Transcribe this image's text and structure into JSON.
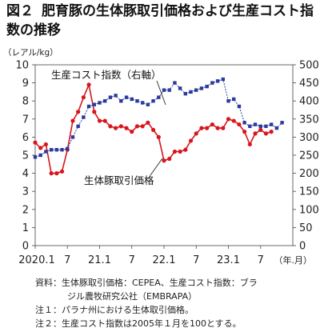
{
  "title": {
    "fig": "図２",
    "text": "肥育豚の生体豚取引価格および生産コスト指数の推移"
  },
  "chart_data": {
    "type": "line",
    "y_left_unit": "（レアル/kg）",
    "y_left_range": [
      0,
      10
    ],
    "y_left_ticks": [
      "0",
      "1",
      "2",
      "3",
      "4",
      "5",
      "6",
      "7",
      "8",
      "9",
      "10"
    ],
    "y_right_range": [
      0,
      500
    ],
    "y_right_ticks": [
      "0",
      "50",
      "100",
      "150",
      "200",
      "250",
      "300",
      "350",
      "400",
      "450",
      "500"
    ],
    "x_tick_labels": [
      "2020.1",
      "7",
      "21.1",
      "7",
      "22.1",
      "7",
      "23.1",
      "7"
    ],
    "x_unit": "（年.月）",
    "x_range": [
      "2020-01",
      "2024-01"
    ],
    "series": [
      {
        "name": "生体豚取引価格",
        "axis": "left",
        "color": "#d9141b",
        "marker": "circle",
        "points": [
          [
            "2020-01",
            5.7
          ],
          [
            "2020-02",
            5.4
          ],
          [
            "2020-03",
            5.6
          ],
          [
            "2020-04",
            4.0
          ],
          [
            "2020-05",
            4.0
          ],
          [
            "2020-06",
            4.1
          ],
          [
            "2020-07",
            5.3
          ],
          [
            "2020-08",
            6.9
          ],
          [
            "2020-09",
            7.4
          ],
          [
            "2020-10",
            8.2
          ],
          [
            "2020-11",
            8.9
          ],
          [
            "2020-12",
            7.4
          ],
          [
            "2021-01",
            6.9
          ],
          [
            "2021-02",
            6.9
          ],
          [
            "2021-03",
            6.6
          ],
          [
            "2021-04",
            6.5
          ],
          [
            "2021-05",
            6.6
          ],
          [
            "2021-06",
            6.5
          ],
          [
            "2021-07",
            6.3
          ],
          [
            "2021-08",
            6.6
          ],
          [
            "2021-09",
            6.6
          ],
          [
            "2021-10",
            6.8
          ],
          [
            "2021-11",
            6.4
          ],
          [
            "2021-12",
            6.0
          ],
          [
            "2022-01",
            4.7
          ],
          [
            "2022-02",
            4.8
          ],
          [
            "2022-03",
            5.2
          ],
          [
            "2022-04",
            5.2
          ],
          [
            "2022-05",
            5.3
          ],
          [
            "2022-06",
            5.8
          ],
          [
            "2022-07",
            6.2
          ],
          [
            "2022-08",
            6.5
          ],
          [
            "2022-09",
            6.5
          ],
          [
            "2022-10",
            6.7
          ],
          [
            "2022-11",
            6.5
          ],
          [
            "2022-12",
            6.5
          ],
          [
            "2023-01",
            7.0
          ],
          [
            "2023-02",
            6.9
          ],
          [
            "2023-03",
            6.7
          ],
          [
            "2023-04",
            6.3
          ],
          [
            "2023-05",
            5.6
          ],
          [
            "2023-06",
            6.2
          ],
          [
            "2023-07",
            6.4
          ],
          [
            "2023-08",
            6.2
          ],
          [
            "2023-09",
            6.3
          ]
        ]
      },
      {
        "name": "生産コスト指数（右軸）",
        "axis": "right",
        "color": "#2a3a9c",
        "marker": "square",
        "points": [
          [
            "2020-01",
            245
          ],
          [
            "2020-02",
            250
          ],
          [
            "2020-03",
            260
          ],
          [
            "2020-04",
            265
          ],
          [
            "2020-05",
            265
          ],
          [
            "2020-06",
            265
          ],
          [
            "2020-07",
            268
          ],
          [
            "2020-08",
            300
          ],
          [
            "2020-09",
            330
          ],
          [
            "2020-10",
            355
          ],
          [
            "2020-11",
            385
          ],
          [
            "2020-12",
            390
          ],
          [
            "2021-01",
            395
          ],
          [
            "2021-02",
            400
          ],
          [
            "2021-03",
            410
          ],
          [
            "2021-04",
            415
          ],
          [
            "2021-05",
            400
          ],
          [
            "2021-06",
            410
          ],
          [
            "2021-07",
            405
          ],
          [
            "2021-08",
            400
          ],
          [
            "2021-09",
            395
          ],
          [
            "2021-10",
            390
          ],
          [
            "2021-11",
            400
          ],
          [
            "2021-12",
            410
          ],
          [
            "2022-01",
            430
          ],
          [
            "2022-02",
            430
          ],
          [
            "2022-03",
            450
          ],
          [
            "2022-04",
            435
          ],
          [
            "2022-05",
            420
          ],
          [
            "2022-06",
            425
          ],
          [
            "2022-07",
            430
          ],
          [
            "2022-08",
            435
          ],
          [
            "2022-09",
            440
          ],
          [
            "2022-10",
            450
          ],
          [
            "2022-11",
            455
          ],
          [
            "2022-12",
            460
          ],
          [
            "2023-01",
            400
          ],
          [
            "2023-02",
            405
          ],
          [
            "2023-03",
            385
          ],
          [
            "2023-04",
            340
          ],
          [
            "2023-05",
            330
          ],
          [
            "2023-06",
            335
          ],
          [
            "2023-07",
            330
          ],
          [
            "2023-08",
            330
          ],
          [
            "2023-09",
            335
          ],
          [
            "2023-10",
            325
          ],
          [
            "2023-11",
            340
          ]
        ]
      }
    ],
    "legend": [
      {
        "label": "生産コスト指数（右軸）",
        "series": 1
      },
      {
        "label": "生体豚取引価格",
        "series": 0
      }
    ],
    "grid": false
  },
  "notes": [
    "資料：生体豚取引価格：CEPEA、生産コスト指数：ブラ",
    "ジル農牧研究公社（EMBRAPA）",
    "注１：パラナ州における生体取引価格。",
    "注２：生産コスト指数は2005年１月を100とする。"
  ]
}
